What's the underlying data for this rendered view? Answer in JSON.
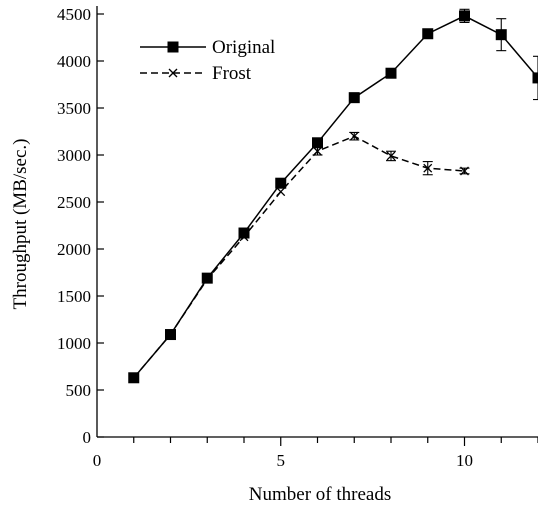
{
  "chart_data": {
    "type": "line",
    "xlabel": "Number of threads",
    "ylabel": "Throughput (MB/sec.)",
    "xlim": [
      0,
      12
    ],
    "ylim": [
      0,
      4500
    ],
    "x_ticks": [
      0,
      5,
      10
    ],
    "y_ticks": [
      0,
      500,
      1000,
      1500,
      2000,
      2500,
      3000,
      3500,
      4000,
      4500
    ],
    "grid": false,
    "legend_position": "top-left",
    "series": [
      {
        "name": "Original",
        "line_style": "solid",
        "marker": "square",
        "x": [
          1,
          2,
          3,
          4,
          5,
          6,
          7,
          8,
          9,
          10,
          11,
          12
        ],
        "y": [
          630,
          1090,
          1690,
          2170,
          2700,
          3130,
          3610,
          3870,
          4290,
          4480,
          4280,
          3820
        ],
        "error": [
          0,
          0,
          0,
          0,
          0,
          0,
          0,
          0,
          0,
          70,
          170,
          230
        ]
      },
      {
        "name": "Frost",
        "line_style": "dashed",
        "marker": "x",
        "x": [
          1,
          2,
          3,
          4,
          5,
          6,
          7,
          8,
          9,
          10
        ],
        "y": [
          630,
          1090,
          1680,
          2130,
          2610,
          3040,
          3200,
          2990,
          2860,
          2830
        ],
        "error": [
          0,
          0,
          0,
          0,
          0,
          40,
          40,
          50,
          70,
          30
        ]
      }
    ]
  }
}
